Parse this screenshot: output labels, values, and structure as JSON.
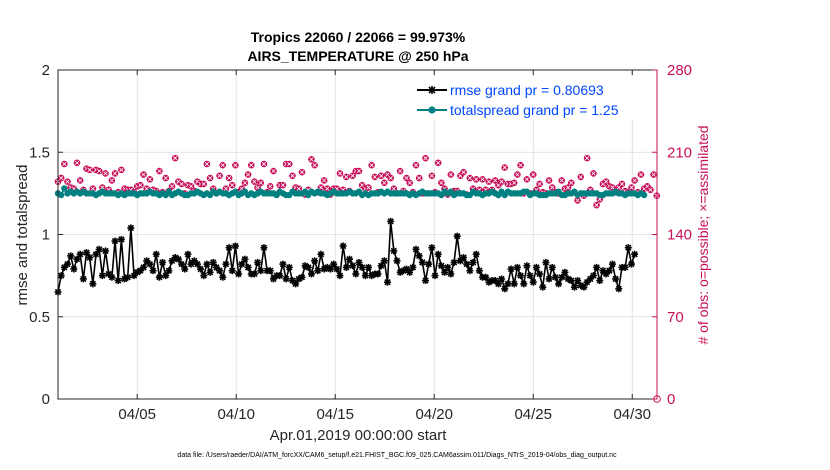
{
  "chart_data": {
    "type": "line",
    "title_line1": "Tropics 22060 / 22066 = 99.973%",
    "title_line2": "AIRS_TEMPERATURE @ 250 hPa",
    "xlabel": "Apr.01,2019 00:00:00 start",
    "ylabel": "rmse and totalspread",
    "y2label": "# of obs: o=possible; ×=assimilated",
    "footer": "data file: /Users/raeder/DAI/ATM_forcXX/CAM6_setup/f.e21.FHIST_BGC.f09_025.CAM6assim.011/Diags_NTrS_2019-04/obs_diag_output.nc",
    "xlim": [
      1.0,
      31.25
    ],
    "ylim": [
      0,
      2
    ],
    "y2lim": [
      0,
      280
    ],
    "x_ticks": [
      5,
      10,
      15,
      20,
      25,
      30
    ],
    "x_tick_labels": [
      "04/05",
      "04/10",
      "04/15",
      "04/20",
      "04/25",
      "04/30"
    ],
    "y_ticks": [
      0,
      0.5,
      1,
      1.5,
      2
    ],
    "y_tick_labels": [
      "0",
      "0.5",
      "1",
      "1.5",
      "2"
    ],
    "y2_ticks": [
      0,
      70,
      140,
      210,
      280
    ],
    "y2_tick_labels": [
      "0",
      "70",
      "140",
      "210",
      "280"
    ],
    "grid": true,
    "legend_position": "top-right",
    "colors": {
      "rmse": "#000000",
      "spread": "#008080",
      "obs": "#c8105a",
      "legend_text": "#0047ff",
      "grid": "#dcdcdc"
    },
    "series": [
      {
        "name": "rmse grand pr = 0.80693",
        "axis": "left",
        "values": [
          0.65,
          0.75,
          0.8,
          0.82,
          0.87,
          0.79,
          0.85,
          0.88,
          0.73,
          0.89,
          0.86,
          0.7,
          0.88,
          0.91,
          0.75,
          0.9,
          0.76,
          0.74,
          0.96,
          0.72,
          0.97,
          0.73,
          0.74,
          1.04,
          0.75,
          0.77,
          0.78,
          0.8,
          0.84,
          0.82,
          0.78,
          0.88,
          0.74,
          0.83,
          0.75,
          0.78,
          0.84,
          0.86,
          0.85,
          0.82,
          0.79,
          0.88,
          0.82,
          0.84,
          0.82,
          0.79,
          0.75,
          0.82,
          0.77,
          0.83,
          0.8,
          0.78,
          0.74,
          0.82,
          0.92,
          0.78,
          0.93,
          0.76,
          0.82,
          0.85,
          0.8,
          0.76,
          0.76,
          0.83,
          0.78,
          0.92,
          0.78,
          0.78,
          0.73,
          0.75,
          0.75,
          0.82,
          0.73,
          0.8,
          0.72,
          0.7,
          0.73,
          0.74,
          0.81,
          0.8,
          0.76,
          0.84,
          0.78,
          0.88,
          0.79,
          0.8,
          0.79,
          0.82,
          0.79,
          0.75,
          0.93,
          0.8,
          0.85,
          0.81,
          0.76,
          0.83,
          0.8,
          0.75,
          0.8,
          0.75,
          0.76,
          0.76,
          0.81,
          0.84,
          0.71,
          1.08,
          0.9,
          0.84,
          0.77,
          0.78,
          0.79,
          0.77,
          0.8,
          0.91,
          0.87,
          0.83,
          0.72,
          0.82,
          0.92,
          0.75,
          0.88,
          0.81,
          0.77,
          0.8,
          0.76,
          0.83,
          0.99,
          0.84,
          0.86,
          0.82,
          0.78,
          0.83,
          0.88,
          0.78,
          0.74,
          0.74,
          0.71,
          0.72,
          0.72,
          0.7,
          0.73,
          0.67,
          0.7,
          0.79,
          0.7,
          0.8,
          0.75,
          0.7,
          0.81,
          0.75,
          0.71,
          0.8,
          0.76,
          0.68,
          0.83,
          0.73,
          0.8,
          0.74,
          0.7,
          0.74,
          0.77,
          0.73,
          0.72,
          0.68,
          0.72,
          0.69,
          0.68,
          0.71,
          0.73,
          0.75,
          0.8,
          0.72,
          0.78,
          0.76,
          0.78,
          0.82,
          0.73,
          0.67,
          0.8,
          0.8,
          0.92,
          0.82,
          0.88
        ]
      },
      {
        "name": "totalspread grand pr = 1.25",
        "axis": "left",
        "values": [
          1.25,
          1.24,
          1.28,
          1.25,
          1.26,
          1.25,
          1.26,
          1.25,
          1.26,
          1.25,
          1.25,
          1.25,
          1.24,
          1.25,
          1.26,
          1.25,
          1.25,
          1.25,
          1.25,
          1.24,
          1.25,
          1.24,
          1.25,
          1.25,
          1.25,
          1.24,
          1.25,
          1.25,
          1.25,
          1.26,
          1.25,
          1.25,
          1.24,
          1.25,
          1.24,
          1.26,
          1.24,
          1.25,
          1.26,
          1.25,
          1.24,
          1.24,
          1.25,
          1.25,
          1.26,
          1.25,
          1.24,
          1.25,
          1.24,
          1.26,
          1.25,
          1.26,
          1.25,
          1.25,
          1.24,
          1.25,
          1.26,
          1.24,
          1.25,
          1.26,
          1.24,
          1.25,
          1.24,
          1.25,
          1.26,
          1.25,
          1.25,
          1.25,
          1.25,
          1.24,
          1.26,
          1.25,
          1.24,
          1.24,
          1.26,
          1.25,
          1.25,
          1.25,
          1.26,
          1.24,
          1.26,
          1.25,
          1.26,
          1.25,
          1.25,
          1.24,
          1.25,
          1.26,
          1.25,
          1.25,
          1.25,
          1.25,
          1.26,
          1.25,
          1.25,
          1.26,
          1.24,
          1.25,
          1.24,
          1.25,
          1.25,
          1.25,
          1.26,
          1.25,
          1.26,
          1.25,
          1.25,
          1.25,
          1.25,
          1.25,
          1.25,
          1.24,
          1.25,
          1.24,
          1.25,
          1.26,
          1.25,
          1.25,
          1.25,
          1.25,
          1.25,
          1.24,
          1.26,
          1.25,
          1.26,
          1.24,
          1.25,
          1.25,
          1.25,
          1.24,
          1.24,
          1.26,
          1.25,
          1.25,
          1.24,
          1.25,
          1.25,
          1.26,
          1.25,
          1.24,
          1.26,
          1.24,
          1.26,
          1.25,
          1.25,
          1.25,
          1.25,
          1.26,
          1.26,
          1.24,
          1.25,
          1.25,
          1.24,
          1.24,
          1.24,
          1.25,
          1.25,
          1.25,
          1.26,
          1.24,
          1.24,
          1.25,
          1.25,
          1.26,
          1.24,
          1.25,
          1.25,
          1.25,
          1.25,
          1.25,
          1.25,
          1.24,
          1.24,
          1.25,
          1.25,
          1.25,
          1.26,
          1.25,
          1.25,
          1.24,
          1.25,
          1.25,
          1.25,
          1.24,
          1.25,
          1.24
        ]
      },
      {
        "name": "# of obs",
        "axis": "right",
        "values": [
          185,
          188,
          200,
          185,
          180,
          179,
          201,
          186,
          178,
          196,
          195,
          179,
          195,
          194,
          180,
          192,
          178,
          186,
          192,
          176,
          195,
          179,
          178,
          178,
          176,
          181,
          182,
          191,
          179,
          187,
          178,
          177,
          194,
          176,
          188,
          177,
          181,
          205,
          185,
          183,
          175,
          182,
          181,
          177,
          185,
          183,
          183,
          200,
          188,
          179,
          175,
          190,
          199,
          179,
          188,
          182,
          199,
          176,
          179,
          184,
          191,
          199,
          185,
          180,
          184,
          200,
          176,
          181,
          194,
          174,
          182,
          182,
          200,
          200,
          190,
          180,
          179,
          193,
          174,
          178,
          204,
          199,
          176,
          180,
          186,
          179,
          174,
          179,
          179,
          192,
          178,
          189,
          177,
          190,
          194,
          194,
          182,
          179,
          180,
          199,
          189,
          176,
          190,
          184,
          191,
          188,
          179,
          175,
          194,
          177,
          188,
          184,
          176,
          199,
          188,
          175,
          205,
          175,
          190,
          176,
          201,
          184,
          179,
          174,
          191,
          177,
          177,
          190,
          193,
          174,
          188,
          179,
          187,
          178,
          187,
          178,
          185,
          178,
          186,
          182,
          185,
          197,
          183,
          183,
          184,
          191,
          199,
          175,
          187,
          175,
          191,
          178,
          183,
          176,
          175,
          186,
          180,
          176,
          175,
          186,
          179,
          180,
          184,
          176,
          169,
          189,
          173,
          205,
          178,
          192,
          165,
          170,
          183,
          185,
          181,
          180,
          176,
          180,
          183,
          177,
          176,
          180,
          186,
          176,
          191,
          179,
          181,
          178,
          191,
          173
        ]
      }
    ]
  }
}
